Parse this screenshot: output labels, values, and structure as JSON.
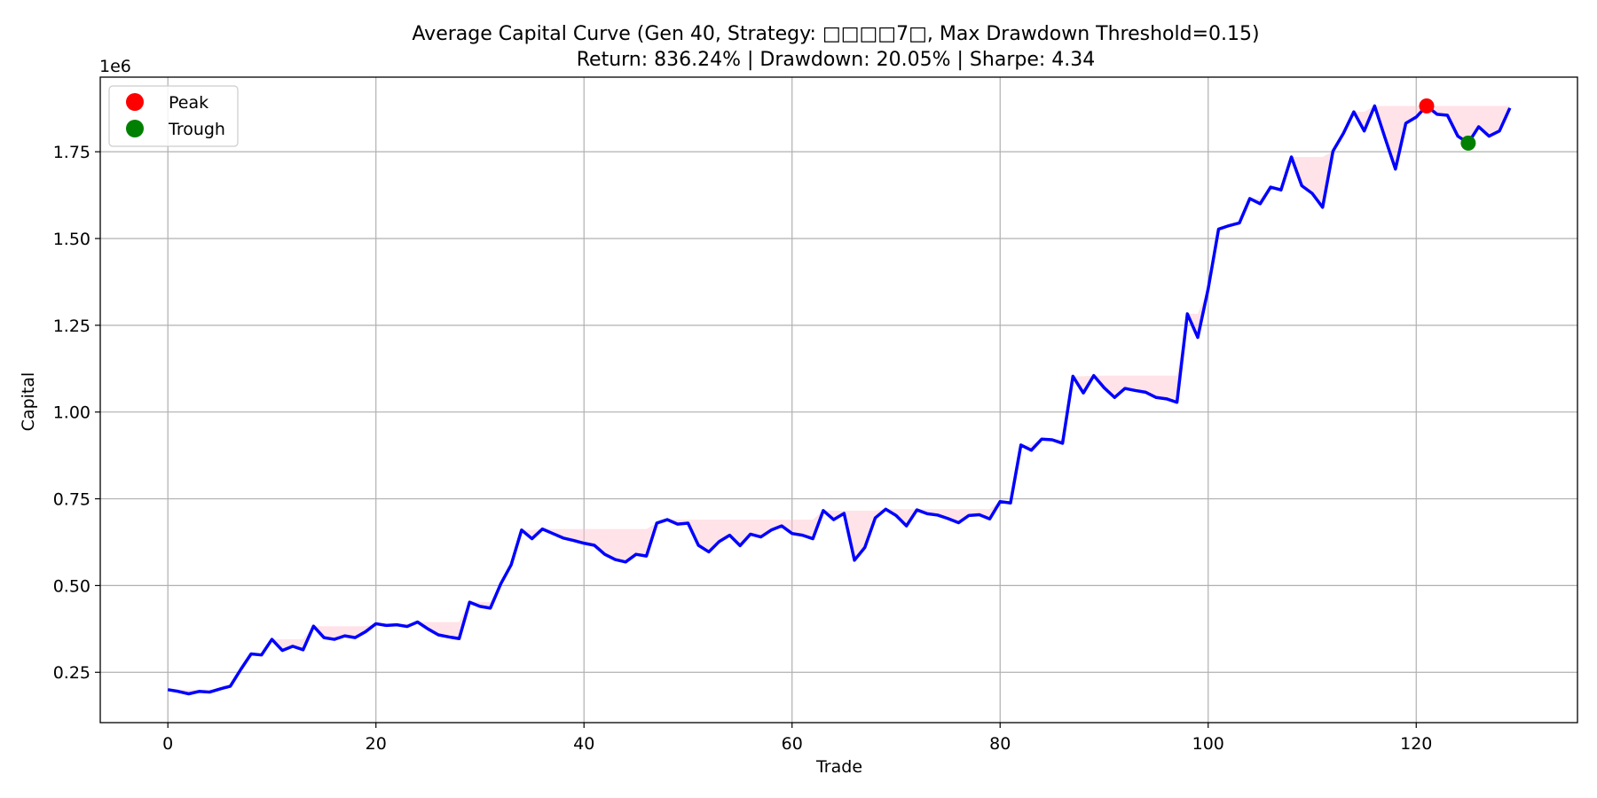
{
  "chart_data": {
    "type": "line",
    "title": "Average Capital Curve (Gen 40, Strategy: □□□□7□, Max Drawdown Threshold=0.15)",
    "subtitle": "Return: 836.24% | Drawdown: 20.05% | Sharpe: 4.34",
    "xlabel": "Trade",
    "ylabel": "Capital",
    "y_offset_label": "1e6",
    "xlim": [
      -6.5,
      135.5
    ],
    "ylim": [
      0.105,
      1.965
    ],
    "x_ticks": [
      0,
      20,
      40,
      60,
      80,
      100,
      120
    ],
    "x_tick_labels": [
      "0",
      "20",
      "40",
      "60",
      "80",
      "100",
      "120"
    ],
    "y_ticks": [
      0.25,
      0.5,
      0.75,
      1.0,
      1.25,
      1.5,
      1.75
    ],
    "y_tick_labels": [
      "0.25",
      "0.50",
      "0.75",
      "1.00",
      "1.25",
      "1.50",
      "1.75"
    ],
    "grid": true,
    "legend_position": "top-left",
    "colors": {
      "line": "#0000ff",
      "drawdown_fill": "#ffc0cb",
      "peak": "#ff0000",
      "trough": "#008000",
      "grid": "#b0b0b0"
    },
    "legend": [
      {
        "label": "Peak",
        "color": "#ff0000"
      },
      {
        "label": "Trough",
        "color": "#008000"
      }
    ],
    "series": [
      {
        "values": [
          0.2,
          0.195,
          0.188,
          0.195,
          0.193,
          0.202,
          0.21,
          0.258,
          0.303,
          0.3,
          0.345,
          0.313,
          0.325,
          0.315,
          0.383,
          0.35,
          0.345,
          0.355,
          0.35,
          0.367,
          0.39,
          0.385,
          0.387,
          0.382,
          0.395,
          0.375,
          0.358,
          0.352,
          0.347,
          0.452,
          0.44,
          0.435,
          0.505,
          0.56,
          0.66,
          0.635,
          0.663,
          0.65,
          0.637,
          0.63,
          0.622,
          0.616,
          0.59,
          0.575,
          0.568,
          0.59,
          0.585,
          0.68,
          0.69,
          0.677,
          0.68,
          0.616,
          0.597,
          0.627,
          0.645,
          0.615,
          0.648,
          0.64,
          0.66,
          0.672,
          0.65,
          0.645,
          0.635,
          0.716,
          0.69,
          0.708,
          0.573,
          0.61,
          0.695,
          0.72,
          0.702,
          0.672,
          0.718,
          0.707,
          0.703,
          0.693,
          0.681,
          0.702,
          0.704,
          0.692,
          0.742,
          0.738,
          0.905,
          0.89,
          0.922,
          0.92,
          0.91,
          1.103,
          1.055,
          1.105,
          1.07,
          1.042,
          1.068,
          1.062,
          1.057,
          1.042,
          1.038,
          1.028,
          1.283,
          1.215,
          1.355,
          1.527,
          1.537,
          1.545,
          1.615,
          1.6,
          1.648,
          1.64,
          1.735,
          1.652,
          1.63,
          1.59,
          1.752,
          1.803,
          1.865,
          1.81,
          1.882,
          1.79,
          1.7,
          1.832,
          1.85,
          1.882,
          1.858,
          1.855,
          1.795,
          1.775,
          1.822,
          1.795,
          1.81,
          1.876
        ]
      }
    ],
    "peak": {
      "x": 121,
      "y": 1.882
    },
    "trough": {
      "x": 125,
      "y": 1.775
    }
  }
}
